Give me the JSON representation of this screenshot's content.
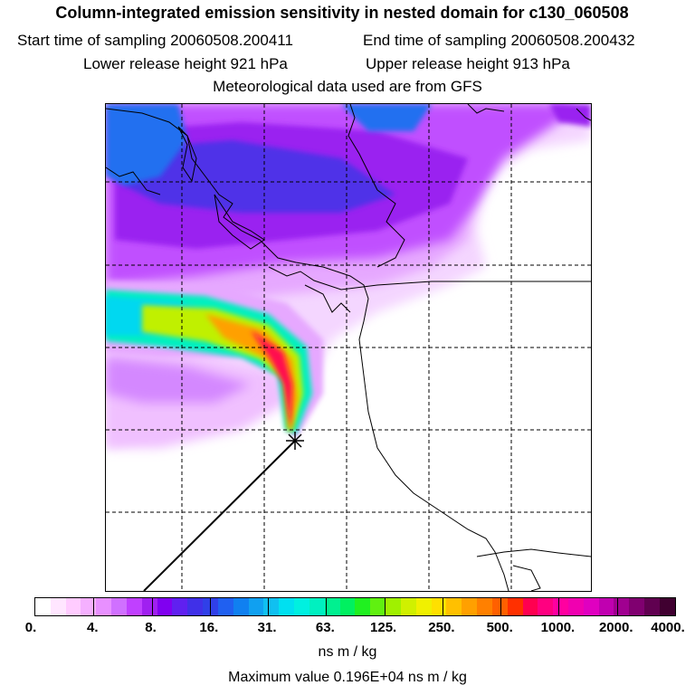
{
  "header": {
    "title": "Column-integrated emission sensitivity in nested domain for c130_060508",
    "start_label": "Start time of sampling 20060508.200411",
    "end_label": "End time of sampling 20060508.200432",
    "lower_release": "Lower release height  921 hPa",
    "upper_release": "Upper release height  913 hPa",
    "met_data": "Meteorological data used are from GFS"
  },
  "colorbar": {
    "labels": [
      "0.",
      "4.",
      "8.",
      "16.",
      "31.",
      "63.",
      "125.",
      "250.",
      "500.",
      "1000.",
      "2000.",
      "4000."
    ],
    "colors": [
      "#ffffff",
      "#ffe6ff",
      "#ffccff",
      "#f5b0ff",
      "#e890ff",
      "#d070ff",
      "#c040ff",
      "#a020f0",
      "#8000f0",
      "#6020f0",
      "#4030e8",
      "#3040e8",
      "#2060f0",
      "#1080f0",
      "#10a0f0",
      "#10c0f0",
      "#00e0f0",
      "#00f0e0",
      "#00f0c0",
      "#00f090",
      "#00f060",
      "#20f020",
      "#60f010",
      "#a0f000",
      "#d0f000",
      "#f0f000",
      "#ffe000",
      "#ffc000",
      "#ffa000",
      "#ff8000",
      "#ff6000",
      "#ff3000",
      "#ff0050",
      "#ff0080",
      "#ff00a0",
      "#f000b0",
      "#e000c0",
      "#c000b0",
      "#a00090",
      "#800070",
      "#600050",
      "#400030"
    ],
    "unit": "ns m / kg",
    "max_value": "Maximum value  0.196E+04 ns m / kg"
  },
  "map": {
    "receptor_marker": "star"
  }
}
